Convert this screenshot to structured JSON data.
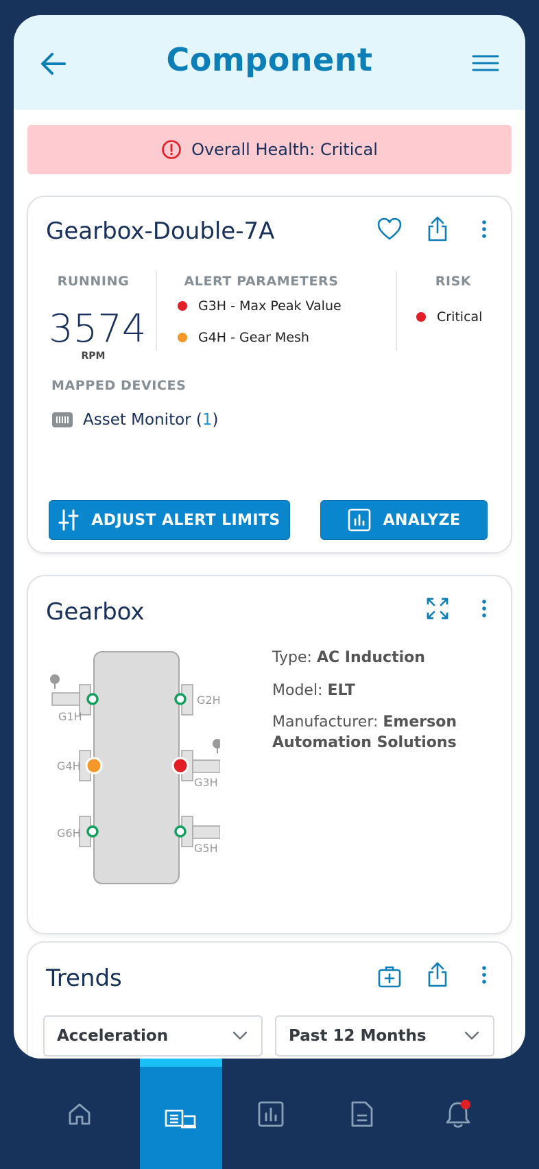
{
  "header": {
    "title": "Component"
  },
  "banner": {
    "text": "Overall Health: Critical"
  },
  "component": {
    "name": "Gearbox-Double-7A",
    "running_label": "RUNNING",
    "rpm": "3574",
    "rpm_unit": "RPM",
    "alert_label": "ALERT PARAMETERS",
    "alerts": [
      {
        "text": "G3H - Max Peak Value",
        "color": "#e31f26"
      },
      {
        "text": "G4H - Gear Mesh",
        "color": "#f5982a"
      }
    ],
    "risk_label": "RISK",
    "risk_value": "Critical",
    "mapped_label": "MAPPED DEVICES",
    "device_name": "Asset Monitor (",
    "device_count": "1",
    "device_close": ")",
    "adjust_button": "ADJUST ALERT LIMITS",
    "analyze_button": "ANALYZE"
  },
  "gearbox": {
    "title": "Gearbox",
    "points": [
      {
        "label": "G1H",
        "status": "ok"
      },
      {
        "label": "G2H",
        "status": "ok"
      },
      {
        "label": "G4H",
        "status": "warning"
      },
      {
        "label": "G3H",
        "status": "critical"
      },
      {
        "label": "G6H",
        "status": "ok"
      },
      {
        "label": "G5H",
        "status": "ok"
      }
    ],
    "type_label": "Type: ",
    "type_value": "AC Induction",
    "model_label": "Model: ",
    "model_value": "ELT",
    "manufacturer_label": "Manufacturer: ",
    "manufacturer_value": "Emerson Automation Solutions"
  },
  "trends": {
    "title": "Trends",
    "measure_select": "Acceleration",
    "range_select": "Past 12 Months"
  },
  "nav": {
    "items": [
      "home-icon",
      "assets-icon",
      "reports-icon",
      "document-icon",
      "notifications-icon"
    ],
    "active": "assets-icon"
  },
  "colors": {
    "accent": "#0a86cf",
    "critical": "#e31f26",
    "warning": "#f5982a",
    "ok": "#12a05c",
    "navy": "#17335c"
  }
}
